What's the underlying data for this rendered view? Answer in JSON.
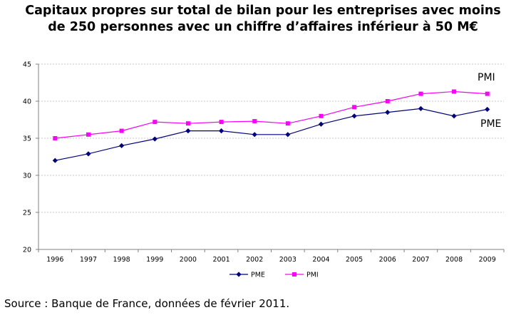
{
  "chart_data": {
    "type": "line",
    "title": "Capitaux propres sur total de bilan pour les entreprises avec moins de 250 personnes avec un chiffre d’affaires inférieur à 50 M€",
    "title_lines": [
      "Capitaux propres sur total de bilan pour les entreprises avec moins",
      "de 250 personnes avec un chiffre d’affaires inférieur à 50 M€"
    ],
    "x": [
      "1996",
      "1997",
      "1998",
      "1999",
      "2000",
      "2001",
      "2002",
      "2003",
      "2004",
      "2005",
      "2006",
      "2007",
      "2008",
      "2009"
    ],
    "series": [
      {
        "name": "PME",
        "color": "#000080",
        "marker": "diamond",
        "values": [
          32.0,
          32.9,
          34.0,
          34.9,
          36.0,
          36.0,
          35.5,
          35.5,
          36.9,
          38.0,
          38.5,
          39.0,
          38.0,
          38.9
        ]
      },
      {
        "name": "PMI",
        "color": "#ff00ff",
        "marker": "square",
        "values": [
          35.0,
          35.5,
          36.0,
          37.2,
          37.0,
          37.2,
          37.3,
          37.0,
          38.0,
          39.2,
          40.0,
          41.0,
          41.3,
          41.0
        ]
      }
    ],
    "ylim": [
      20,
      45
    ],
    "yticks": [
      "20",
      "25",
      "30",
      "35",
      "40",
      "45"
    ],
    "grid": true,
    "legend": "bottom",
    "annotations": [
      "PMI",
      "PME"
    ],
    "xlabel": "",
    "ylabel": ""
  },
  "source": "Source : Banque de France, données de février 2011."
}
